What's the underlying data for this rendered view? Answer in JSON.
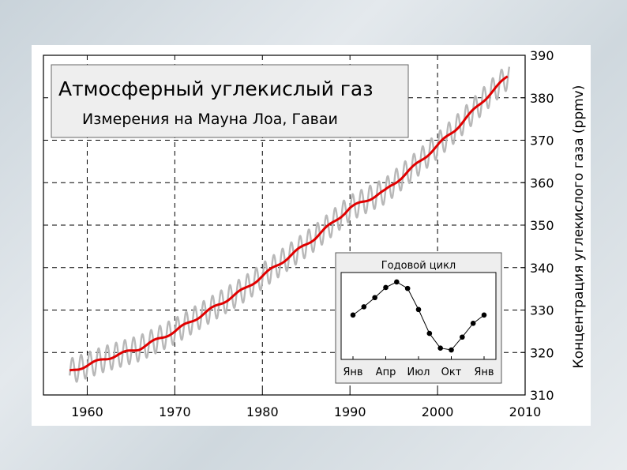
{
  "chart_data": [
    {
      "type": "line",
      "title": "Атмосферный углекислый газ",
      "subtitle": "Измерения на Мауна Лоа, Гаваи",
      "xlabel": "",
      "ylabel": "Концентрация углекислого газа (ppmv)",
      "xlim": [
        1955,
        2010
      ],
      "ylim": [
        310,
        390
      ],
      "x_ticks": [
        "1960",
        "1970",
        "1980",
        "1990",
        "2000",
        "2010"
      ],
      "y_ticks": [
        "310",
        "320",
        "330",
        "340",
        "350",
        "360",
        "370",
        "380",
        "390"
      ],
      "grid": true,
      "y_axis_position": "right",
      "series": [
        {
          "color": "#b8b8b8",
          "seasonal_amplitude_ppmv": 3.0,
          "x": [
            1958,
            1962,
            1966,
            1970,
            1974,
            1978,
            1982,
            1986,
            1990,
            1994,
            1998,
            2002,
            2006,
            2008
          ],
          "y": [
            315.5,
            318.5,
            321.0,
            325.0,
            330.0,
            335.0,
            341.0,
            347.0,
            354.0,
            358.0,
            365.0,
            372.5,
            381.0,
            385.0
          ]
        },
        {
          "color": "#e00000",
          "x": [
            1958,
            1962,
            1966,
            1970,
            1974,
            1978,
            1982,
            1986,
            1990,
            1994,
            1998,
            2002,
            2006,
            2008
          ],
          "y": [
            315.5,
            318.5,
            321.0,
            325.0,
            330.0,
            335.0,
            341.0,
            347.0,
            354.0,
            358.0,
            365.0,
            372.5,
            381.0,
            385.0
          ]
        }
      ]
    },
    {
      "type": "line",
      "title": "Годовой цикл",
      "categories": [
        "Янв",
        "Апр",
        "Июл",
        "Окт",
        "Янв"
      ],
      "series": [
        {
          "color": "#000000",
          "x": [
            0,
            1,
            2,
            3,
            4,
            5,
            6,
            7,
            8,
            9,
            10,
            11,
            12
          ],
          "y": [
            0.0,
            0.9,
            1.9,
            3.0,
            3.6,
            2.9,
            0.6,
            -2.0,
            -3.6,
            -3.8,
            -2.4,
            -0.9,
            0.0
          ]
        }
      ]
    }
  ]
}
